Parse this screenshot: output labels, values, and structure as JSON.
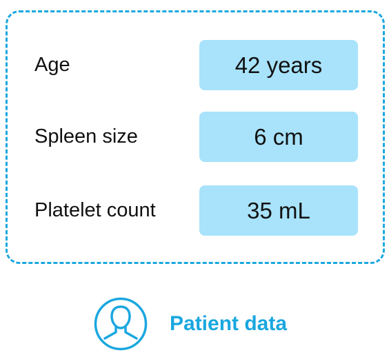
{
  "patient_card": {
    "rows": [
      {
        "label": "Age",
        "value": "42 years"
      },
      {
        "label": "Spleen size",
        "value": "6 cm"
      },
      {
        "label": "Platelet count",
        "value": "35 mL"
      }
    ]
  },
  "footer": {
    "icon": "person-icon",
    "label": "Patient data"
  },
  "colors": {
    "accent": "#1aa7df",
    "value_background": "#a8e3fb",
    "text": "#111111"
  }
}
